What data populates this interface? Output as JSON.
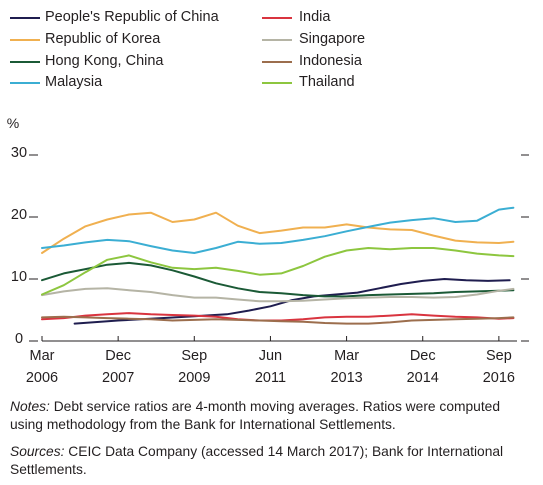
{
  "chart_data": {
    "type": "line",
    "ylabel": "%",
    "ylim": [
      0,
      30
    ],
    "yticks": [
      0,
      10,
      20,
      30
    ],
    "xlim": [
      "2006-03",
      "2017-02"
    ],
    "xticks": [
      {
        "date": "2006-03",
        "month": "Mar",
        "year": "2006"
      },
      {
        "date": "2007-12",
        "month": "Dec",
        "year": "2007"
      },
      {
        "date": "2009-09",
        "month": "Sep",
        "year": "2009"
      },
      {
        "date": "2011-06",
        "month": "Jun",
        "year": "2011"
      },
      {
        "date": "2013-03",
        "month": "Mar",
        "year": "2013"
      },
      {
        "date": "2014-12",
        "month": "Dec",
        "year": "2014"
      },
      {
        "date": "2016-09",
        "month": "Sep",
        "year": "2016"
      }
    ],
    "legend_placement": "top",
    "grid": false,
    "series": [
      {
        "name": "People's Republic of China",
        "color": "#1f1d4f",
        "points": [
          [
            "2006-12",
            2.8
          ],
          [
            "2007-12",
            3.3
          ],
          [
            "2008-12",
            3.7
          ],
          [
            "2009-09",
            4.0
          ],
          [
            "2010-06",
            4.3
          ],
          [
            "2010-12",
            4.9
          ],
          [
            "2011-06",
            5.6
          ],
          [
            "2011-12",
            6.6
          ],
          [
            "2012-06",
            7.2
          ],
          [
            "2012-12",
            7.5
          ],
          [
            "2013-06",
            7.8
          ],
          [
            "2013-12",
            8.5
          ],
          [
            "2014-06",
            9.2
          ],
          [
            "2014-12",
            9.7
          ],
          [
            "2015-06",
            10.0
          ],
          [
            "2015-12",
            9.8
          ],
          [
            "2016-06",
            9.7
          ],
          [
            "2016-12",
            9.8
          ]
        ]
      },
      {
        "name": "Republic of Korea",
        "color": "#f0b050",
        "points": [
          [
            "2006-03",
            14.2
          ],
          [
            "2006-09",
            16.5
          ],
          [
            "2007-03",
            18.5
          ],
          [
            "2007-09",
            19.6
          ],
          [
            "2008-03",
            20.4
          ],
          [
            "2008-09",
            20.7
          ],
          [
            "2009-03",
            19.2
          ],
          [
            "2009-09",
            19.6
          ],
          [
            "2010-03",
            20.7
          ],
          [
            "2010-09",
            18.6
          ],
          [
            "2011-03",
            17.4
          ],
          [
            "2011-09",
            17.8
          ],
          [
            "2012-03",
            18.3
          ],
          [
            "2012-09",
            18.3
          ],
          [
            "2013-03",
            18.8
          ],
          [
            "2013-09",
            18.3
          ],
          [
            "2014-03",
            18.0
          ],
          [
            "2014-09",
            17.9
          ],
          [
            "2015-03",
            17.0
          ],
          [
            "2015-09",
            16.2
          ],
          [
            "2016-03",
            15.9
          ],
          [
            "2016-09",
            15.8
          ],
          [
            "2017-01",
            16.0
          ]
        ]
      },
      {
        "name": "Hong Kong, China",
        "color": "#1b5a36",
        "points": [
          [
            "2006-03",
            9.8
          ],
          [
            "2006-09",
            10.9
          ],
          [
            "2007-03",
            11.6
          ],
          [
            "2007-09",
            12.3
          ],
          [
            "2008-03",
            12.6
          ],
          [
            "2008-09",
            12.2
          ],
          [
            "2009-03",
            11.4
          ],
          [
            "2009-09",
            10.4
          ],
          [
            "2010-03",
            9.3
          ],
          [
            "2010-09",
            8.5
          ],
          [
            "2011-03",
            7.9
          ],
          [
            "2011-09",
            7.7
          ],
          [
            "2012-03",
            7.4
          ],
          [
            "2012-09",
            7.2
          ],
          [
            "2013-03",
            7.2
          ],
          [
            "2013-09",
            7.4
          ],
          [
            "2014-03",
            7.5
          ],
          [
            "2014-09",
            7.6
          ],
          [
            "2015-03",
            7.7
          ],
          [
            "2015-09",
            7.9
          ],
          [
            "2016-03",
            8.0
          ],
          [
            "2016-09",
            8.1
          ],
          [
            "2017-01",
            8.2
          ]
        ]
      },
      {
        "name": "Malaysia",
        "color": "#3baed3",
        "points": [
          [
            "2006-03",
            15.0
          ],
          [
            "2006-09",
            15.4
          ],
          [
            "2007-03",
            15.9
          ],
          [
            "2007-09",
            16.3
          ],
          [
            "2008-03",
            16.1
          ],
          [
            "2008-09",
            15.3
          ],
          [
            "2009-03",
            14.6
          ],
          [
            "2009-09",
            14.2
          ],
          [
            "2010-03",
            15.0
          ],
          [
            "2010-09",
            16.0
          ],
          [
            "2011-03",
            15.7
          ],
          [
            "2011-09",
            15.8
          ],
          [
            "2012-03",
            16.3
          ],
          [
            "2012-09",
            16.9
          ],
          [
            "2013-03",
            17.7
          ],
          [
            "2013-09",
            18.4
          ],
          [
            "2014-03",
            19.1
          ],
          [
            "2014-09",
            19.5
          ],
          [
            "2015-03",
            19.8
          ],
          [
            "2015-09",
            19.2
          ],
          [
            "2016-03",
            19.4
          ],
          [
            "2016-09",
            21.2
          ],
          [
            "2017-01",
            21.5
          ]
        ]
      },
      {
        "name": "India",
        "color": "#d9343f",
        "points": [
          [
            "2006-03",
            3.5
          ],
          [
            "2006-09",
            3.7
          ],
          [
            "2007-03",
            4.1
          ],
          [
            "2007-09",
            4.3
          ],
          [
            "2008-03",
            4.5
          ],
          [
            "2008-09",
            4.3
          ],
          [
            "2009-03",
            4.2
          ],
          [
            "2009-09",
            4.1
          ],
          [
            "2010-03",
            3.9
          ],
          [
            "2010-09",
            3.5
          ],
          [
            "2011-03",
            3.3
          ],
          [
            "2011-09",
            3.3
          ],
          [
            "2012-03",
            3.5
          ],
          [
            "2012-09",
            3.8
          ],
          [
            "2013-03",
            3.9
          ],
          [
            "2013-09",
            3.9
          ],
          [
            "2014-03",
            4.1
          ],
          [
            "2014-09",
            4.3
          ],
          [
            "2015-03",
            4.1
          ],
          [
            "2015-09",
            3.9
          ],
          [
            "2016-03",
            3.8
          ],
          [
            "2016-09",
            3.6
          ],
          [
            "2017-01",
            3.7
          ]
        ]
      },
      {
        "name": "Singapore",
        "color": "#b5b4a5",
        "points": [
          [
            "2006-03",
            7.4
          ],
          [
            "2006-09",
            8.0
          ],
          [
            "2007-03",
            8.4
          ],
          [
            "2007-09",
            8.5
          ],
          [
            "2008-03",
            8.2
          ],
          [
            "2008-09",
            7.9
          ],
          [
            "2009-03",
            7.4
          ],
          [
            "2009-09",
            7.0
          ],
          [
            "2010-03",
            7.0
          ],
          [
            "2010-09",
            6.7
          ],
          [
            "2011-03",
            6.4
          ],
          [
            "2011-09",
            6.4
          ],
          [
            "2012-03",
            6.5
          ],
          [
            "2012-09",
            6.7
          ],
          [
            "2013-03",
            6.9
          ],
          [
            "2013-09",
            7.0
          ],
          [
            "2014-03",
            7.1
          ],
          [
            "2014-09",
            7.1
          ],
          [
            "2015-03",
            7.0
          ],
          [
            "2015-09",
            7.1
          ],
          [
            "2016-03",
            7.5
          ],
          [
            "2016-09",
            8.1
          ],
          [
            "2017-01",
            8.4
          ]
        ]
      },
      {
        "name": "Indonesia",
        "color": "#9c6e4d",
        "points": [
          [
            "2006-03",
            3.8
          ],
          [
            "2006-09",
            3.9
          ],
          [
            "2007-03",
            3.8
          ],
          [
            "2007-09",
            3.7
          ],
          [
            "2008-03",
            3.6
          ],
          [
            "2008-09",
            3.5
          ],
          [
            "2009-03",
            3.3
          ],
          [
            "2009-09",
            3.4
          ],
          [
            "2010-03",
            3.5
          ],
          [
            "2010-09",
            3.4
          ],
          [
            "2011-03",
            3.3
          ],
          [
            "2011-09",
            3.2
          ],
          [
            "2012-03",
            3.1
          ],
          [
            "2012-09",
            2.9
          ],
          [
            "2013-03",
            2.8
          ],
          [
            "2013-09",
            2.8
          ],
          [
            "2014-03",
            3.0
          ],
          [
            "2014-09",
            3.3
          ],
          [
            "2015-03",
            3.4
          ],
          [
            "2015-09",
            3.5
          ],
          [
            "2016-03",
            3.6
          ],
          [
            "2016-09",
            3.7
          ],
          [
            "2017-01",
            3.8
          ]
        ]
      },
      {
        "name": "Thailand",
        "color": "#8dc63f",
        "points": [
          [
            "2006-03",
            7.5
          ],
          [
            "2006-09",
            9.0
          ],
          [
            "2007-03",
            11.1
          ],
          [
            "2007-09",
            13.1
          ],
          [
            "2008-03",
            13.8
          ],
          [
            "2008-09",
            12.7
          ],
          [
            "2009-03",
            11.8
          ],
          [
            "2009-09",
            11.6
          ],
          [
            "2010-03",
            11.8
          ],
          [
            "2010-09",
            11.3
          ],
          [
            "2011-03",
            10.7
          ],
          [
            "2011-09",
            10.9
          ],
          [
            "2012-03",
            12.1
          ],
          [
            "2012-09",
            13.6
          ],
          [
            "2013-03",
            14.6
          ],
          [
            "2013-09",
            15.0
          ],
          [
            "2014-03",
            14.8
          ],
          [
            "2014-09",
            15.0
          ],
          [
            "2015-03",
            15.0
          ],
          [
            "2015-09",
            14.6
          ],
          [
            "2016-03",
            14.1
          ],
          [
            "2016-09",
            13.8
          ],
          [
            "2017-01",
            13.7
          ]
        ]
      }
    ]
  },
  "footnotes": {
    "notes_label": "Notes:",
    "notes_text": " Debt service ratios are 4-month moving averages. Ratios were computed using methodology from the Bank for International Settlements.",
    "sources_label": "Sources:",
    "sources_text": " CEIC Data Company (accessed 14 March 2017); Bank for International Settlements."
  }
}
